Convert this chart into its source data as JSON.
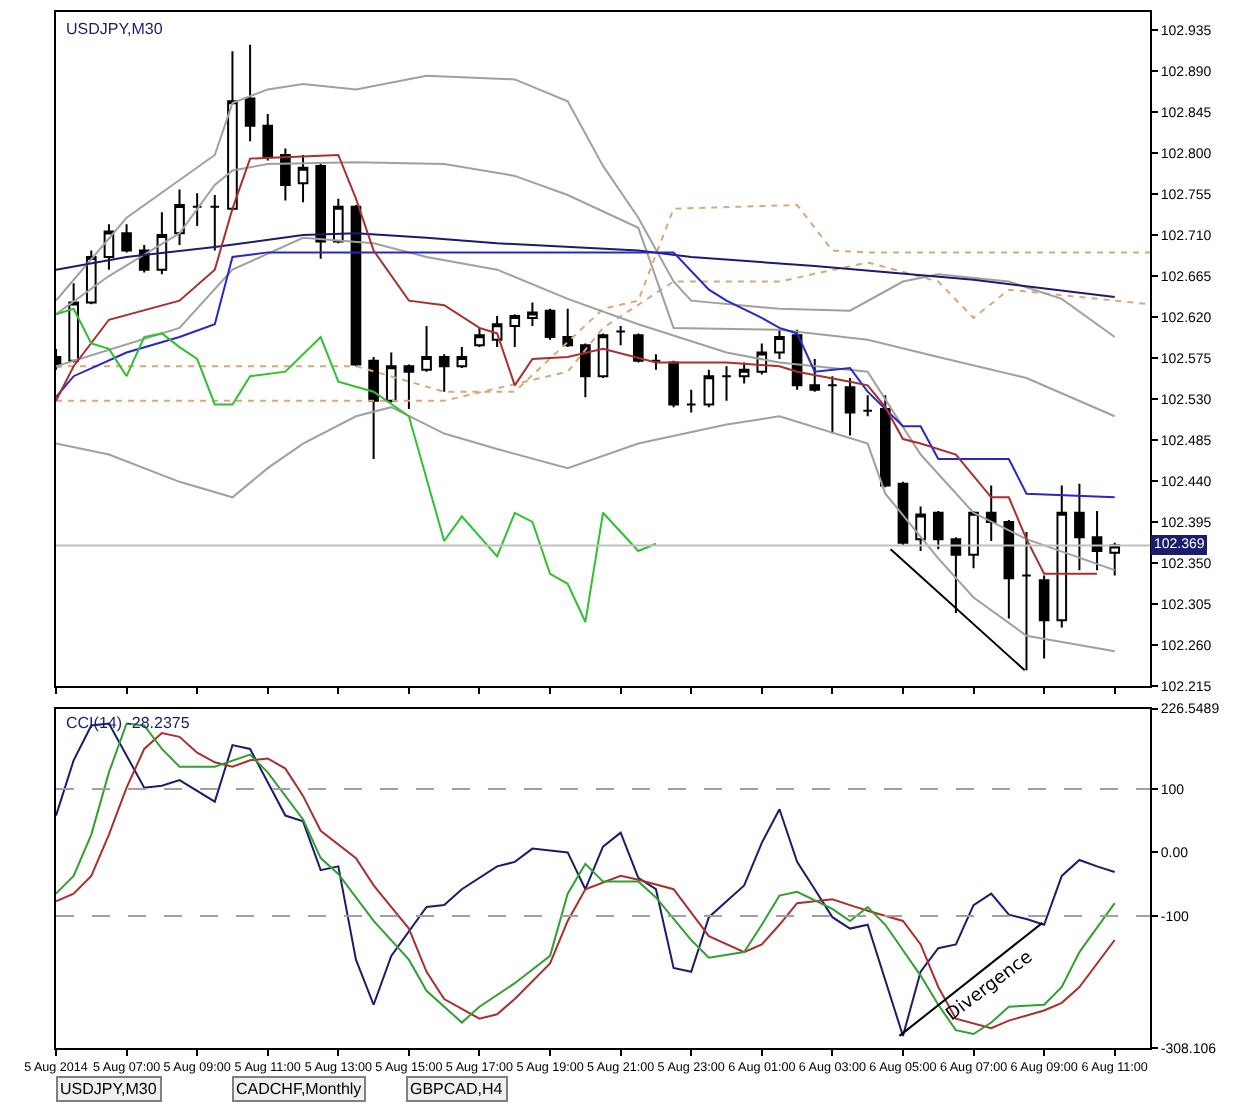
{
  "chart_data": [
    {
      "type": "candlestick",
      "title": "USDJPY,M30",
      "tick_labels": "y",
      "x": [
        "2014-08-05T05:00",
        "2014-08-05T05:30",
        "2014-08-05T06:00",
        "2014-08-05T06:30",
        "2014-08-05T07:00",
        "2014-08-05T07:30",
        "2014-08-05T08:00",
        "2014-08-05T08:30",
        "2014-08-05T09:00",
        "2014-08-05T09:30",
        "2014-08-05T10:00",
        "2014-08-05T10:30",
        "2014-08-05T11:00",
        "2014-08-05T11:30",
        "2014-08-05T12:00",
        "2014-08-05T12:30",
        "2014-08-05T13:00",
        "2014-08-05T13:30",
        "2014-08-05T14:00",
        "2014-08-05T14:30",
        "2014-08-05T15:00",
        "2014-08-05T15:30",
        "2014-08-05T16:00",
        "2014-08-05T16:30",
        "2014-08-05T17:00",
        "2014-08-05T17:30",
        "2014-08-05T18:00",
        "2014-08-05T18:30",
        "2014-08-05T19:00",
        "2014-08-05T19:30",
        "2014-08-05T20:00",
        "2014-08-05T20:30",
        "2014-08-05T21:00",
        "2014-08-05T21:30",
        "2014-08-05T22:00",
        "2014-08-05T22:30",
        "2014-08-05T23:00",
        "2014-08-05T23:30",
        "2014-08-06T00:00",
        "2014-08-06T00:30",
        "2014-08-06T01:00",
        "2014-08-06T01:30",
        "2014-08-06T02:00",
        "2014-08-06T02:30",
        "2014-08-06T03:00",
        "2014-08-06T03:30",
        "2014-08-06T04:00",
        "2014-08-06T04:30",
        "2014-08-06T05:00",
        "2014-08-06T05:30",
        "2014-08-06T06:00",
        "2014-08-06T06:30",
        "2014-08-06T07:00",
        "2014-08-06T07:30",
        "2014-08-06T08:00",
        "2014-08-06T08:30",
        "2014-08-06T09:00",
        "2014-08-06T09:30",
        "2014-08-06T10:00",
        "2014-08-06T10:30",
        "2014-08-06T11:00"
      ],
      "ohlc": [
        [
          102.576,
          102.585,
          102.562,
          102.566
        ],
        [
          102.572,
          102.657,
          102.57,
          102.636
        ],
        [
          102.636,
          102.693,
          102.634,
          102.686
        ],
        [
          102.686,
          102.722,
          102.672,
          102.714
        ],
        [
          102.712,
          102.722,
          102.691,
          102.693
        ],
        [
          102.693,
          102.699,
          102.669,
          102.672
        ],
        [
          102.672,
          102.735,
          102.667,
          102.71
        ],
        [
          102.712,
          102.76,
          102.699,
          102.743
        ],
        [
          102.741,
          102.756,
          102.72,
          102.741
        ],
        [
          102.741,
          102.754,
          102.693,
          102.741
        ],
        [
          102.739,
          102.912,
          102.737,
          102.857
        ],
        [
          102.86,
          102.919,
          102.813,
          102.83
        ],
        [
          102.83,
          102.843,
          102.792,
          102.796
        ],
        [
          102.798,
          102.805,
          102.748,
          102.765
        ],
        [
          102.767,
          102.798,
          102.746,
          102.784
        ],
        [
          102.786,
          102.788,
          102.684,
          102.703
        ],
        [
          102.703,
          102.75,
          102.701,
          102.741
        ],
        [
          102.741,
          102.743,
          102.566,
          102.568
        ],
        [
          102.572,
          102.576,
          102.464,
          102.528
        ],
        [
          102.528,
          102.581,
          102.526,
          102.566
        ],
        [
          102.566,
          102.568,
          102.519,
          102.56
        ],
        [
          102.562,
          102.61,
          102.56,
          102.576
        ],
        [
          102.576,
          102.579,
          102.538,
          102.566
        ],
        [
          102.566,
          102.587,
          102.564,
          102.576
        ],
        [
          102.589,
          102.608,
          102.587,
          102.6
        ],
        [
          102.595,
          102.621,
          102.587,
          102.612
        ],
        [
          102.61,
          102.623,
          102.587,
          102.621
        ],
        [
          102.619,
          102.636,
          102.61,
          102.625
        ],
        [
          102.627,
          102.629,
          102.595,
          102.598
        ],
        [
          102.598,
          102.629,
          102.587,
          102.589
        ],
        [
          102.589,
          102.591,
          102.532,
          102.555
        ],
        [
          102.555,
          102.602,
          102.553,
          102.6
        ],
        [
          102.604,
          102.61,
          102.589,
          102.604
        ],
        [
          102.6,
          102.602,
          102.57,
          102.572
        ],
        [
          102.572,
          102.579,
          102.562,
          102.572
        ],
        [
          102.57,
          102.572,
          102.521,
          102.524
        ],
        [
          102.524,
          102.54,
          102.515,
          102.524
        ],
        [
          102.524,
          102.562,
          102.521,
          102.555
        ],
        [
          102.555,
          102.566,
          102.528,
          102.555
        ],
        [
          102.555,
          102.57,
          102.547,
          102.562
        ],
        [
          102.56,
          102.591,
          102.557,
          102.581
        ],
        [
          102.581,
          102.606,
          102.574,
          102.598
        ],
        [
          102.6,
          102.606,
          102.54,
          102.545
        ],
        [
          102.545,
          102.574,
          102.538,
          102.54
        ],
        [
          102.545,
          102.555,
          102.492,
          102.545
        ],
        [
          102.543,
          102.553,
          102.49,
          102.515
        ],
        [
          102.517,
          102.534,
          102.511,
          102.517
        ],
        [
          102.519,
          102.534,
          102.433,
          102.435
        ],
        [
          102.437,
          102.439,
          102.369,
          102.372
        ],
        [
          102.376,
          102.412,
          102.363,
          102.403
        ],
        [
          102.405,
          102.407,
          102.365,
          102.376
        ],
        [
          102.376,
          102.378,
          102.295,
          102.359
        ],
        [
          102.359,
          102.407,
          102.344,
          102.405
        ],
        [
          102.405,
          102.435,
          102.374,
          102.395
        ],
        [
          102.395,
          102.397,
          102.289,
          102.333
        ],
        [
          102.336,
          102.384,
          102.232,
          102.336
        ],
        [
          102.331,
          102.336,
          102.245,
          102.287
        ],
        [
          102.287,
          102.435,
          102.279,
          102.405
        ],
        [
          102.405,
          102.437,
          102.342,
          102.378
        ],
        [
          102.378,
          102.407,
          102.342,
          102.363
        ],
        [
          102.361,
          102.372,
          102.336,
          102.369
        ]
      ],
      "series": [
        {
          "type": "line",
          "color": "#d8a878",
          "line_style": "dotted",
          "x": [
            "2014-08-05T05:00",
            "2014-08-05T13:30",
            "2014-08-05T16:00",
            "2014-08-05T18:00",
            "2014-08-05T20:30",
            "2014-08-05T21:30",
            "2014-08-05T22:30",
            "2014-08-06T02:00",
            "2014-08-06T03:00",
            "2014-08-06T04:00",
            "2014-08-06T12:00"
          ],
          "values": [
            102.566,
            102.566,
            102.538,
            102.538,
            102.629,
            102.638,
            102.739,
            102.743,
            102.693,
            102.691,
            102.691
          ]
        },
        {
          "type": "line",
          "color": "#d8a878",
          "line_style": "dotted",
          "x": [
            "2014-08-05T05:00",
            "2014-08-05T13:30",
            "2014-08-05T16:00",
            "2014-08-05T19:30",
            "2014-08-05T20:30",
            "2014-08-05T22:30",
            "2014-08-06T01:30",
            "2014-08-06T04:00",
            "2014-08-06T06:00",
            "2014-08-06T07:00",
            "2014-08-06T08:00",
            "2014-08-06T12:00"
          ],
          "values": [
            102.528,
            102.528,
            102.528,
            102.56,
            102.608,
            102.659,
            102.659,
            102.68,
            102.659,
            102.619,
            102.65,
            102.634
          ]
        },
        {
          "type": "line",
          "color": "#a0a0a0",
          "x": [
            "2014-08-05T05:00",
            "2014-08-05T07:00",
            "2014-08-05T09:30",
            "2014-08-05T10:00",
            "2014-08-05T11:00",
            "2014-08-05T12:00",
            "2014-08-05T13:30",
            "2014-08-05T15:30",
            "2014-08-05T18:00",
            "2014-08-05T19:30",
            "2014-08-05T20:30",
            "2014-08-05T21:30",
            "2014-08-05T22:30",
            "2014-08-05T23:00",
            "2014-08-06T01:30",
            "2014-08-06T03:30",
            "2014-08-06T05:00",
            "2014-08-06T06:00",
            "2014-08-06T08:00",
            "2014-08-06T09:30",
            "2014-08-06T11:00"
          ],
          "values": [
            102.638,
            102.729,
            102.798,
            102.855,
            102.87,
            102.876,
            102.87,
            102.885,
            102.881,
            102.857,
            102.786,
            102.729,
            102.659,
            102.638,
            102.629,
            102.627,
            102.659,
            102.667,
            102.659,
            102.64,
            102.598
          ]
        },
        {
          "type": "line",
          "color": "#a0a0a0",
          "x": [
            "2014-08-05T05:00",
            "2014-08-05T06:30",
            "2014-08-05T08:30",
            "2014-08-05T09:30",
            "2014-08-05T10:00",
            "2014-08-05T11:00",
            "2014-08-05T13:30",
            "2014-08-05T16:00",
            "2014-08-05T18:00",
            "2014-08-05T19:30",
            "2014-08-05T21:30",
            "2014-08-05T22:30",
            "2014-08-06T01:30",
            "2014-08-06T04:00",
            "2014-08-06T06:00",
            "2014-08-06T08:30",
            "2014-08-06T11:00"
          ],
          "values": [
            102.623,
            102.665,
            102.712,
            102.765,
            102.781,
            102.788,
            102.79,
            102.788,
            102.775,
            102.754,
            102.718,
            102.608,
            102.606,
            102.595,
            102.576,
            102.553,
            102.511
          ]
        },
        {
          "type": "line",
          "color": "#a0a0a0",
          "x": [
            "2014-08-05T05:00",
            "2014-08-05T08:30",
            "2014-08-05T10:00",
            "2014-08-05T12:00",
            "2014-08-05T14:00",
            "2014-08-05T15:30",
            "2014-08-05T17:30",
            "2014-08-05T19:30",
            "2014-08-05T21:30",
            "2014-08-06T00:00",
            "2014-08-06T01:30",
            "2014-08-06T04:00",
            "2014-08-06T05:30",
            "2014-08-06T07:00",
            "2014-08-06T08:30",
            "2014-08-06T11:00"
          ],
          "values": [
            102.566,
            102.608,
            102.672,
            102.707,
            102.701,
            102.686,
            102.672,
            102.64,
            102.612,
            102.581,
            102.57,
            102.56,
            102.469,
            102.405,
            102.376,
            102.342
          ]
        },
        {
          "type": "line",
          "color": "#a0a0a0",
          "x": [
            "2014-08-05T05:00",
            "2014-08-05T06:30",
            "2014-08-05T08:30",
            "2014-08-05T10:00",
            "2014-08-05T11:00",
            "2014-08-05T12:00",
            "2014-08-05T13:30",
            "2014-08-05T14:30",
            "2014-08-05T16:00",
            "2014-08-05T17:30",
            "2014-08-05T19:30",
            "2014-08-05T21:30",
            "2014-08-06T00:00",
            "2014-08-06T01:30",
            "2014-08-06T04:00",
            "2014-08-06T04:30",
            "2014-08-06T06:00",
            "2014-08-06T07:00",
            "2014-08-06T08:30",
            "2014-08-06T11:00"
          ],
          "values": [
            102.481,
            102.469,
            102.439,
            102.422,
            102.454,
            102.481,
            102.511,
            102.521,
            102.492,
            102.475,
            102.454,
            102.481,
            102.502,
            102.511,
            102.481,
            102.426,
            102.355,
            102.312,
            102.27,
            102.253
          ]
        },
        {
          "type": "line",
          "color": "#1c1c6c",
          "x": [
            "2014-08-05T05:00",
            "2014-08-05T07:00",
            "2014-08-05T09:30",
            "2014-08-05T12:00",
            "2014-08-05T13:30",
            "2014-08-05T15:30",
            "2014-08-05T17:30",
            "2014-08-05T21:30",
            "2014-08-05T23:00",
            "2014-08-06T02:30",
            "2014-08-06T07:00",
            "2014-08-06T11:00"
          ],
          "values": [
            102.672,
            102.686,
            102.697,
            102.71,
            102.712,
            102.707,
            102.701,
            102.693,
            102.686,
            102.676,
            102.661,
            102.642
          ]
        },
        {
          "type": "line",
          "color": "#2828c8",
          "x": [
            "2014-08-05T05:00",
            "2014-08-05T05:30",
            "2014-08-05T07:00",
            "2014-08-05T08:30",
            "2014-08-05T09:30",
            "2014-08-05T10:00",
            "2014-08-05T11:00",
            "2014-08-05T22:30",
            "2014-08-05T23:30",
            "2014-08-06T00:00",
            "2014-08-06T01:00",
            "2014-08-06T01:30",
            "2014-08-06T02:00",
            "2014-08-06T02:30",
            "2014-08-06T03:30",
            "2014-08-06T04:00",
            "2014-08-06T05:00",
            "2014-08-06T05:30",
            "2014-08-06T06:00",
            "2014-08-06T08:00",
            "2014-08-06T08:30",
            "2014-08-06T11:00"
          ],
          "values": [
            102.532,
            102.555,
            102.581,
            102.598,
            102.612,
            102.686,
            102.691,
            102.691,
            102.65,
            102.638,
            102.619,
            102.608,
            102.602,
            102.56,
            102.564,
            102.538,
            102.5,
            102.5,
            102.464,
            102.464,
            102.426,
            102.422
          ]
        },
        {
          "type": "line",
          "color": "#a83030",
          "x": [
            "2014-08-05T05:00",
            "2014-08-05T05:30",
            "2014-08-05T06:30",
            "2014-08-05T08:30",
            "2014-08-05T09:30",
            "2014-08-05T10:00",
            "2014-08-05T10:30",
            "2014-08-05T13:00",
            "2014-08-05T13:30",
            "2014-08-05T14:00",
            "2014-08-05T15:00",
            "2014-08-05T16:00",
            "2014-08-05T17:00",
            "2014-08-05T17:30",
            "2014-08-05T18:00",
            "2014-08-05T18:30",
            "2014-08-05T19:30",
            "2014-08-05T20:30",
            "2014-08-05T22:00",
            "2014-08-06T00:00",
            "2014-08-06T01:30",
            "2014-08-06T02:00",
            "2014-08-06T03:30",
            "2014-08-06T04:00",
            "2014-08-06T04:30",
            "2014-08-06T05:00",
            "2014-08-06T05:30",
            "2014-08-06T06:30",
            "2014-08-06T07:30",
            "2014-08-06T08:00",
            "2014-08-06T08:30",
            "2014-08-06T09:00",
            "2014-08-06T10:30"
          ],
          "values": [
            102.528,
            102.566,
            102.617,
            102.638,
            102.672,
            102.739,
            102.794,
            102.798,
            102.75,
            102.693,
            102.638,
            102.633,
            102.608,
            102.602,
            102.545,
            102.574,
            102.576,
            102.585,
            102.57,
            102.57,
            102.566,
            102.56,
            102.549,
            102.545,
            102.521,
            102.486,
            102.481,
            102.469,
            102.422,
            102.422,
            102.376,
            102.338,
            102.338
          ]
        },
        {
          "type": "line",
          "color": "#30c030",
          "x": [
            "2014-08-05T05:00",
            "2014-08-05T05:30",
            "2014-08-05T06:00",
            "2014-08-05T06:30",
            "2014-08-05T07:00",
            "2014-08-05T07:30",
            "2014-08-05T08:00",
            "2014-08-05T08:30",
            "2014-08-05T09:00",
            "2014-08-05T09:30",
            "2014-08-05T10:00",
            "2014-08-05T10:30",
            "2014-08-05T11:30",
            "2014-08-05T12:30",
            "2014-08-05T13:00",
            "2014-08-05T14:00",
            "2014-08-05T15:00",
            "2014-08-05T16:00",
            "2014-08-05T16:30",
            "2014-08-05T17:30",
            "2014-08-05T18:00",
            "2014-08-05T18:30",
            "2014-08-05T19:00",
            "2014-08-05T19:30",
            "2014-08-05T20:00",
            "2014-08-05T20:30",
            "2014-08-05T21:30",
            "2014-08-05T22:00"
          ],
          "values": [
            102.623,
            102.629,
            102.591,
            102.585,
            102.555,
            102.598,
            102.602,
            102.587,
            102.574,
            102.524,
            102.524,
            102.555,
            102.56,
            102.598,
            102.549,
            102.538,
            102.511,
            102.374,
            102.401,
            102.357,
            102.405,
            102.395,
            102.338,
            102.327,
            102.285,
            102.405,
            102.363,
            102.371
          ]
        },
        {
          "type": "line",
          "color": "#000000",
          "x": [
            "2014-08-06T04:39",
            "2014-08-06T08:27"
          ],
          "values": [
            102.365,
            102.232
          ]
        }
      ],
      "xlim": [
        "2014-08-05T05:00",
        "2014-08-06T12:00"
      ],
      "xticks": [
        {
          "value": "2014-08-05T05:00",
          "label": null
        },
        {
          "value": "2014-08-05T07:00",
          "label": null
        },
        {
          "value": "2014-08-05T09:00",
          "label": null
        },
        {
          "value": "2014-08-05T11:00",
          "label": null
        },
        {
          "value": "2014-08-05T13:00",
          "label": null
        },
        {
          "value": "2014-08-05T15:00",
          "label": null
        },
        {
          "value": "2014-08-05T17:00",
          "label": null
        },
        {
          "value": "2014-08-05T19:00",
          "label": null
        },
        {
          "value": "2014-08-05T21:00",
          "label": null
        },
        {
          "value": "2014-08-05T23:00",
          "label": null
        },
        {
          "value": "2014-08-06T01:00",
          "label": null
        },
        {
          "value": "2014-08-06T03:00",
          "label": null
        },
        {
          "value": "2014-08-06T05:00",
          "label": null
        },
        {
          "value": "2014-08-06T07:00",
          "label": null
        },
        {
          "value": "2014-08-06T09:00",
          "label": null
        },
        {
          "value": "2014-08-06T11:00",
          "label": null
        }
      ],
      "ylim": [
        102.215,
        102.955
      ],
      "yticks": [
        102.935,
        {
          "value": 102.89,
          "label": "102.890"
        },
        102.845,
        {
          "value": 102.8,
          "label": "102.800"
        },
        102.755,
        {
          "value": 102.71,
          "label": "102.710"
        },
        102.665,
        {
          "value": 102.62,
          "label": "102.620"
        },
        102.575,
        {
          "value": 102.53,
          "label": "102.530"
        },
        102.485,
        {
          "value": 102.44,
          "label": "102.440"
        },
        102.395,
        {
          "value": 102.35,
          "label": "102.350"
        },
        102.305,
        {
          "value": 102.26,
          "label": "102.260"
        },
        102.215
      ],
      "ref_lines": [
        {
          "axis": "y",
          "value": 102.369,
          "label": "102.369",
          "color": "#c0c0c0"
        }
      ]
    },
    {
      "type": "line",
      "title": "CCI(14) -28.2375",
      "series": [
        {
          "color": "#1c1c6c",
          "x": [
            "2014-08-05T05:00",
            "2014-08-05T05:30",
            "2014-08-05T06:00",
            "2014-08-05T06:30",
            "2014-08-05T07:30",
            "2014-08-05T08:00",
            "2014-08-05T08:30",
            "2014-08-05T09:30",
            "2014-08-05T10:00",
            "2014-08-05T10:30",
            "2014-08-05T11:30",
            "2014-08-05T12:00",
            "2014-08-05T12:30",
            "2014-08-05T13:00",
            "2014-08-05T13:30",
            "2014-08-05T14:00",
            "2014-08-05T14:30",
            "2014-08-05T15:30",
            "2014-08-05T16:00",
            "2014-08-05T16:30",
            "2014-08-05T17:30",
            "2014-08-05T18:00",
            "2014-08-05T18:30",
            "2014-08-05T19:30",
            "2014-08-05T20:00",
            "2014-08-05T20:30",
            "2014-08-05T21:00",
            "2014-08-05T21:30",
            "2014-08-05T22:00",
            "2014-08-05T22:30",
            "2014-08-05T23:00",
            "2014-08-05T23:30",
            "2014-08-06T00:30",
            "2014-08-06T01:00",
            "2014-08-06T01:30",
            "2014-08-06T02:00",
            "2014-08-06T02:30",
            "2014-08-06T03:00",
            "2014-08-06T03:30",
            "2014-08-06T04:00",
            "2014-08-06T05:00",
            "2014-08-06T05:30",
            "2014-08-06T06:00",
            "2014-08-06T06:30",
            "2014-08-06T07:00",
            "2014-08-06T07:30",
            "2014-08-06T08:00",
            "2014-08-06T08:30",
            "2014-08-06T09:00",
            "2014-08-06T09:30",
            "2014-08-06T10:00",
            "2014-08-06T10:30",
            "2014-08-06T11:00"
          ],
          "values": [
            58,
            145,
            200,
            203,
            102,
            105,
            114,
            80,
            169,
            163,
            58,
            49,
            -28,
            -22,
            -169,
            -240,
            -163,
            -86,
            -83,
            -58,
            -22,
            -15,
            6,
            0,
            -58,
            9,
            31,
            -40,
            -58,
            -182,
            -188,
            -102,
            -52,
            15,
            68,
            -15,
            -58,
            -102,
            -120,
            -114,
            -289,
            -188,
            -151,
            -145,
            -83,
            -65,
            -98,
            -105,
            -114,
            -37,
            -12,
            -22,
            -31
          ]
        },
        {
          "color": "#a83030",
          "x": [
            "2014-08-05T05:00",
            "2014-08-05T05:30",
            "2014-08-05T06:00",
            "2014-08-05T06:30",
            "2014-08-05T07:00",
            "2014-08-05T07:30",
            "2014-08-05T08:00",
            "2014-08-05T08:30",
            "2014-08-05T09:00",
            "2014-08-05T09:30",
            "2014-08-05T10:00",
            "2014-08-05T10:30",
            "2014-08-05T11:00",
            "2014-08-05T11:30",
            "2014-08-05T12:00",
            "2014-08-05T12:30",
            "2014-08-05T13:30",
            "2014-08-05T14:00",
            "2014-08-05T15:00",
            "2014-08-05T15:30",
            "2014-08-05T16:00",
            "2014-08-05T17:00",
            "2014-08-05T17:30",
            "2014-08-05T18:00",
            "2014-08-05T19:00",
            "2014-08-05T19:30",
            "2014-08-05T20:00",
            "2014-08-05T21:00",
            "2014-08-05T21:30",
            "2014-08-05T22:30",
            "2014-08-05T23:00",
            "2014-08-05T23:30",
            "2014-08-06T00:30",
            "2014-08-06T01:00",
            "2014-08-06T01:30",
            "2014-08-06T02:00",
            "2014-08-06T03:00",
            "2014-08-06T03:30",
            "2014-08-06T04:00",
            "2014-08-06T05:00",
            "2014-08-06T05:30",
            "2014-08-06T06:00",
            "2014-08-06T06:30",
            "2014-08-06T07:30",
            "2014-08-06T08:00",
            "2014-08-06T09:00",
            "2014-08-06T09:30",
            "2014-08-06T10:00",
            "2014-08-06T11:00"
          ],
          "values": [
            -77,
            -65,
            -37,
            28,
            102,
            163,
            188,
            182,
            157,
            142,
            135,
            145,
            148,
            132,
            89,
            34,
            -9,
            -52,
            -120,
            -188,
            -231,
            -262,
            -255,
            -231,
            -175,
            -108,
            -58,
            -37,
            -43,
            -58,
            -95,
            -132,
            -157,
            -145,
            -114,
            -80,
            -74,
            -83,
            -92,
            -108,
            -145,
            -212,
            -262,
            -277,
            -265,
            -249,
            -237,
            -212,
            -138
          ]
        },
        {
          "color": "#30a030",
          "x": [
            "2014-08-05T05:00",
            "2014-08-05T05:30",
            "2014-08-05T06:00",
            "2014-08-05T06:30",
            "2014-08-05T07:00",
            "2014-08-05T07:30",
            "2014-08-05T08:00",
            "2014-08-05T08:30",
            "2014-08-05T09:30",
            "2014-08-05T10:30",
            "2014-08-05T11:00",
            "2014-08-05T12:00",
            "2014-08-05T12:30",
            "2014-08-05T13:00",
            "2014-08-05T14:00",
            "2014-08-05T15:00",
            "2014-08-05T15:30",
            "2014-08-05T16:30",
            "2014-08-05T17:00",
            "2014-08-05T18:00",
            "2014-08-05T19:00",
            "2014-08-05T19:30",
            "2014-08-05T20:00",
            "2014-08-05T20:30",
            "2014-08-05T21:30",
            "2014-08-05T22:00",
            "2014-08-05T23:00",
            "2014-08-05T23:30",
            "2014-08-06T00:30",
            "2014-08-06T01:00",
            "2014-08-06T01:30",
            "2014-08-06T02:00",
            "2014-08-06T03:00",
            "2014-08-06T03:30",
            "2014-08-06T04:00",
            "2014-08-06T04:30",
            "2014-08-06T05:30",
            "2014-08-06T06:00",
            "2014-08-06T06:30",
            "2014-08-06T07:00",
            "2014-08-06T07:30",
            "2014-08-06T08:00",
            "2014-08-06T09:00",
            "2014-08-06T09:30",
            "2014-08-06T10:00",
            "2014-08-06T11:00"
          ],
          "values": [
            -65,
            -37,
            28,
            126,
            203,
            200,
            163,
            135,
            135,
            154,
            126,
            52,
            -9,
            -34,
            -108,
            -169,
            -218,
            -268,
            -243,
            -206,
            -163,
            -65,
            -18,
            -46,
            -46,
            -71,
            -138,
            -166,
            -157,
            -114,
            -68,
            -62,
            -89,
            -108,
            -86,
            -114,
            -194,
            -240,
            -280,
            -286,
            -268,
            -243,
            -240,
            -212,
            -157,
            -80
          ]
        },
        {
          "color": "#000000",
          "x": [
            "2014-08-06T04:54",
            "2014-08-06T08:57"
          ],
          "values": [
            -289,
            -111
          ]
        }
      ],
      "xlim": [
        "2014-08-05T05:00",
        "2014-08-06T12:00"
      ],
      "xticks": [
        {
          "value": "2014-08-05T05:00",
          "label": "5 Aug 2014"
        },
        {
          "value": "2014-08-05T07:00",
          "label": "5 Aug 07:00"
        },
        {
          "value": "2014-08-05T09:00",
          "label": "5 Aug 09:00"
        },
        {
          "value": "2014-08-05T11:00",
          "label": "5 Aug 11:00"
        },
        {
          "value": "2014-08-05T13:00",
          "label": "5 Aug 13:00"
        },
        {
          "value": "2014-08-05T15:00",
          "label": "5 Aug 15:00"
        },
        {
          "value": "2014-08-05T17:00",
          "label": "5 Aug 17:00"
        },
        {
          "value": "2014-08-05T19:00",
          "label": "5 Aug 19:00"
        },
        {
          "value": "2014-08-05T21:00",
          "label": "5 Aug 21:00"
        },
        {
          "value": "2014-08-05T23:00",
          "label": "5 Aug 23:00"
        },
        {
          "value": "2014-08-06T01:00",
          "label": "6 Aug 01:00"
        },
        {
          "value": "2014-08-06T03:00",
          "label": "6 Aug 03:00"
        },
        {
          "value": "2014-08-06T05:00",
          "label": "6 Aug 05:00"
        },
        {
          "value": "2014-08-06T07:00",
          "label": "6 Aug 07:00"
        },
        {
          "value": "2014-08-06T09:00",
          "label": "6 Aug 09:00"
        },
        {
          "value": "2014-08-06T11:00",
          "label": "6 Aug 11:00"
        }
      ],
      "ylim": [
        -308.106,
        226.5489
      ],
      "yticks": [
        226.5489,
        100,
        {
          "value": 0,
          "label": "0.00"
        },
        -100,
        -308.106
      ],
      "ref_lines": [
        {
          "axis": "y",
          "value": 100,
          "color": "#a0a0a0",
          "line_style": "dashed"
        },
        {
          "axis": "y",
          "value": -100,
          "color": "#a0a0a0",
          "line_style": "dashed"
        }
      ],
      "annotations": [
        {
          "text": "Divergence",
          "x": "2014-08-06T07:09",
          "y": -197
        },
        "USDJPY,M30",
        "CADCHF,Monthly",
        "GBPCAD,H4"
      ]
    }
  ]
}
